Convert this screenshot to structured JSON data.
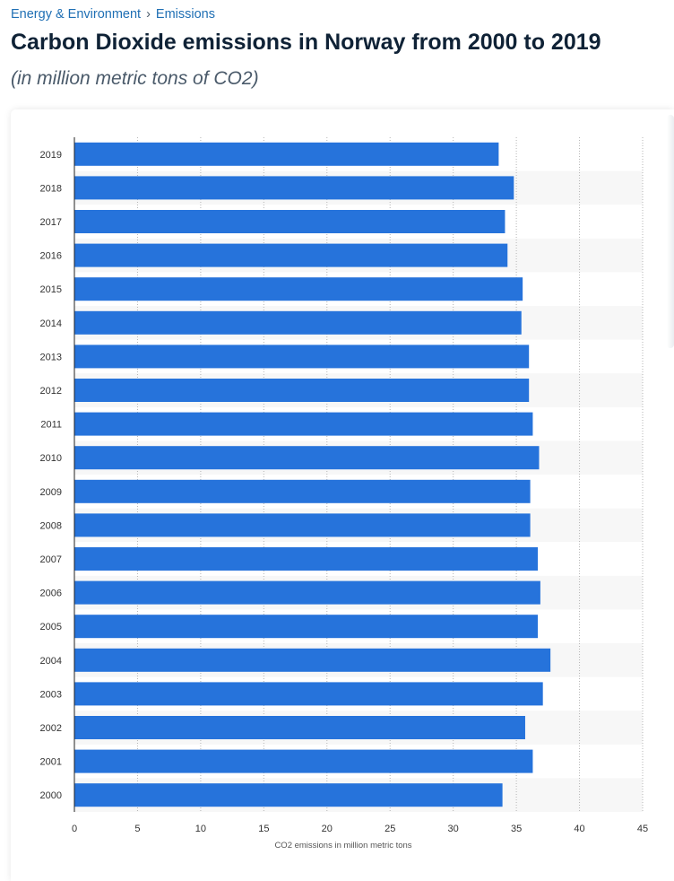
{
  "breadcrumb": {
    "parent": "Energy & Environment",
    "separator": "›",
    "current": "Emissions"
  },
  "title": "Carbon Dioxide emissions in Norway from 2000 to 2019",
  "subtitle": "(in million metric tons of CO2)",
  "colors": {
    "bar": "#2673db",
    "band": "#f7f7f7",
    "grid": "#b5b5b5",
    "axis": "#222222"
  },
  "chart_data": {
    "type": "bar",
    "orientation": "horizontal",
    "categories": [
      "2019",
      "2018",
      "2017",
      "2016",
      "2015",
      "2014",
      "2013",
      "2012",
      "2011",
      "2010",
      "2009",
      "2008",
      "2007",
      "2006",
      "2005",
      "2004",
      "2003",
      "2002",
      "2001",
      "2000"
    ],
    "values": [
      33.6,
      34.8,
      34.1,
      34.3,
      35.5,
      35.4,
      36.0,
      36.0,
      36.3,
      36.8,
      36.1,
      36.1,
      36.7,
      36.9,
      36.7,
      37.7,
      37.1,
      35.7,
      36.3,
      33.9
    ],
    "title": "",
    "xlabel": "CO2 emissions in million metric tons",
    "ylabel": "",
    "xlim": [
      0,
      45
    ],
    "xticks": [
      0,
      5,
      10,
      15,
      20,
      25,
      30,
      35,
      40,
      45
    ],
    "grid": true
  }
}
